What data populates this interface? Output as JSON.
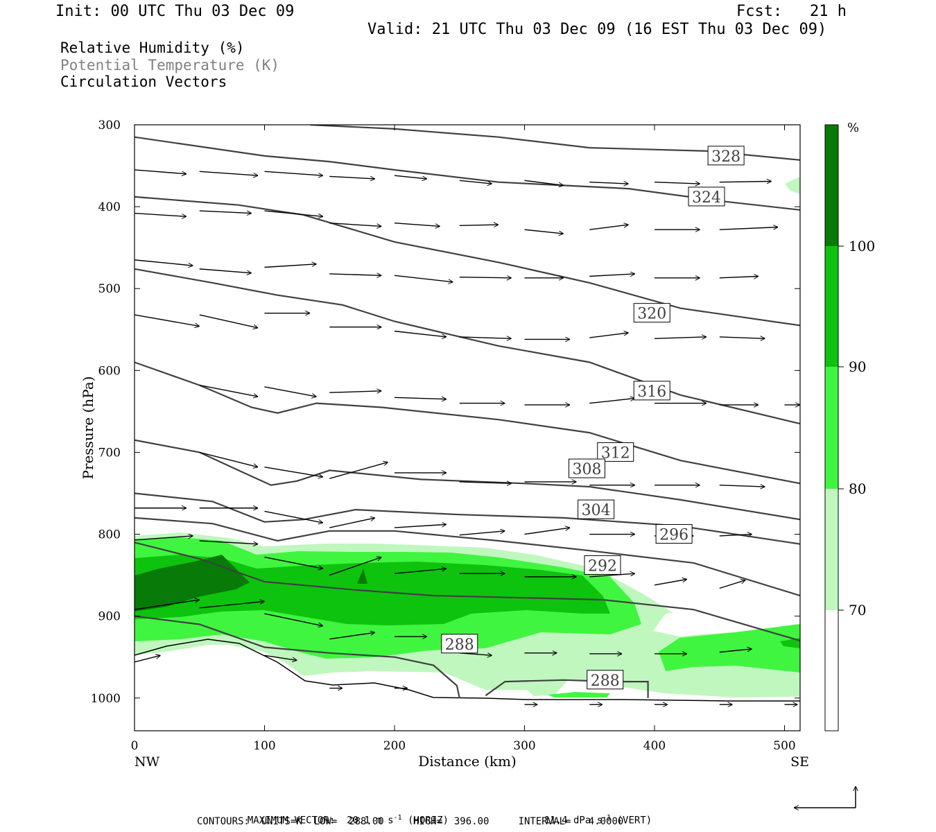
{
  "header": {
    "init": "Init: 00 UTC Thu 03 Dec 09",
    "fcst": "Fcst:   21 h",
    "valid": "Valid: 21 UTC Thu 03 Dec 09 (16 EST Thu 03 Dec 09)"
  },
  "legend": {
    "line1": "Relative Humidity (%)",
    "line2": "Potential Temperature (K)",
    "line3": "Circulation Vectors"
  },
  "colors": {
    "rh70": "#c0f7bf",
    "rh80": "#40f540",
    "rh90": "#0ec30e",
    "rh100": "#077a07",
    "contour": "#404040",
    "label_gray": "#808080"
  },
  "chart_data": {
    "type": "cross-section",
    "xlabel": "Distance (km)",
    "ylabel": "Pressure (hPa)",
    "x_range": [
      0,
      512
    ],
    "y_range": [
      300,
      1040
    ],
    "x_ticks": [
      0,
      100,
      200,
      300,
      400,
      500
    ],
    "y_ticks": [
      300,
      400,
      500,
      600,
      700,
      800,
      900,
      1000
    ],
    "x_end_labels": {
      "left": "NW",
      "right": "SE"
    },
    "colorbar": {
      "unit": "%",
      "levels": [
        70,
        80,
        90,
        100
      ],
      "colors": [
        "#ffffff",
        "#c0f7bf",
        "#40f540",
        "#0ec30e",
        "#077a07"
      ]
    },
    "theta_contours": [
      {
        "value": 328,
        "points": [
          [
            135,
            300
          ],
          [
            200,
            305
          ],
          [
            280,
            315
          ],
          [
            350,
            328
          ],
          [
            440,
            332
          ],
          [
            512,
            343
          ]
        ],
        "label_at": [
          455,
          338
        ]
      },
      {
        "value": 324,
        "points": [
          [
            0,
            315
          ],
          [
            100,
            338
          ],
          [
            150,
            345
          ],
          [
            200,
            355
          ],
          [
            280,
            370
          ],
          [
            380,
            378
          ],
          [
            450,
            393
          ],
          [
            512,
            404
          ]
        ],
        "label_at": [
          440,
          388
        ]
      },
      {
        "value": 320,
        "points": [
          [
            0,
            388
          ],
          [
            80,
            398
          ],
          [
            130,
            410
          ],
          [
            200,
            443
          ],
          [
            280,
            468
          ],
          [
            350,
            493
          ],
          [
            420,
            524
          ],
          [
            512,
            545
          ]
        ],
        "label_at": [
          398,
          530
        ]
      },
      {
        "value": 316,
        "points": [
          [
            0,
            476
          ],
          [
            60,
            493
          ],
          [
            110,
            508
          ],
          [
            160,
            520
          ],
          [
            200,
            540
          ],
          [
            280,
            570
          ],
          [
            350,
            590
          ],
          [
            420,
            630
          ],
          [
            512,
            665
          ]
        ],
        "label_at": [
          398,
          625
        ]
      },
      {
        "value": 312,
        "points": [
          [
            0,
            590
          ],
          [
            50,
            618
          ],
          [
            90,
            645
          ],
          [
            110,
            652
          ],
          [
            140,
            640
          ],
          [
            190,
            645
          ],
          [
            280,
            660
          ],
          [
            350,
            676
          ],
          [
            420,
            710
          ],
          [
            512,
            738
          ]
        ],
        "label_at": [
          370,
          700
        ]
      },
      {
        "value": 308,
        "points": [
          [
            0,
            685
          ],
          [
            50,
            700
          ],
          [
            80,
            722
          ],
          [
            105,
            740
          ],
          [
            125,
            735
          ],
          [
            150,
            722
          ],
          [
            220,
            733
          ],
          [
            300,
            738
          ],
          [
            350,
            742
          ],
          [
            420,
            758
          ],
          [
            512,
            782
          ]
        ],
        "label_at": [
          348,
          720
        ]
      },
      {
        "value": 304,
        "points": [
          [
            0,
            750
          ],
          [
            60,
            760
          ],
          [
            100,
            785
          ],
          [
            130,
            782
          ],
          [
            170,
            770
          ],
          [
            250,
            776
          ],
          [
            330,
            780
          ],
          [
            420,
            790
          ],
          [
            512,
            812
          ]
        ],
        "label_at": [
          355,
          770
        ]
      },
      {
        "value": 296,
        "points": [
          [
            0,
            780
          ],
          [
            60,
            787
          ],
          [
            110,
            808
          ],
          [
            150,
            796
          ],
          [
            200,
            796
          ],
          [
            280,
            808
          ],
          [
            350,
            820
          ],
          [
            430,
            835
          ],
          [
            512,
            875
          ]
        ],
        "label_at": [
          415,
          800
        ]
      },
      {
        "value": 292,
        "points": [
          [
            0,
            810
          ],
          [
            50,
            830
          ],
          [
            100,
            858
          ],
          [
            170,
            868
          ],
          [
            230,
            875
          ],
          [
            360,
            880
          ],
          [
            430,
            892
          ],
          [
            512,
            930
          ]
        ],
        "label_at": [
          360,
          838
        ]
      },
      {
        "value": 288,
        "points": [
          [
            0,
            900
          ],
          [
            50,
            910
          ],
          [
            100,
            938
          ],
          [
            150,
            945
          ],
          [
            200,
            950
          ],
          [
            230,
            960
          ],
          [
            248,
            985
          ],
          [
            250,
            1000
          ]
        ],
        "label_at": [
          250,
          934
        ]
      },
      {
        "value": 288,
        "points": [
          [
            270,
            997
          ],
          [
            285,
            980
          ],
          [
            330,
            978
          ],
          [
            370,
            980
          ],
          [
            395,
            980
          ],
          [
            395,
            1000
          ]
        ],
        "label_at": [
          362,
          978
        ]
      }
    ],
    "vectors_note": "horizontal/vertical circulation vectors",
    "footer": {
      "max_vector": "MAXIMUM VECTOR:  20.1 m s",
      "horiz_sup": "-1",
      "horiz_tail": " (HORIZ)",
      "vert_head": "11.4 dPa s",
      "vert_sup": "-1",
      "vert_tail": " (VERT)",
      "contours": "CONTOURS:  UNITS=K  LOW=  288.00     HIGH=  396.00     INTERVAL=   4.0000"
    }
  }
}
